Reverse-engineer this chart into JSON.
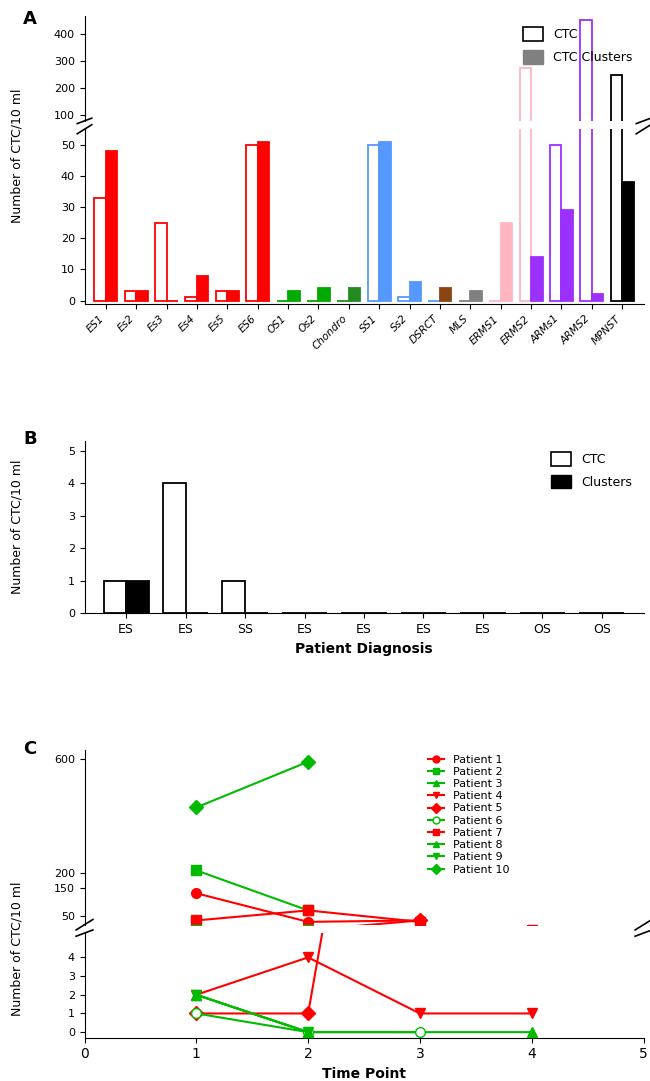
{
  "panel_A": {
    "categories": [
      "ES1",
      "Es2",
      "Es3",
      "Es4",
      "Es5",
      "ES6",
      "OS1",
      "Os2",
      "Chondro",
      "SS1",
      "Ss2",
      "DSRCT",
      "MLS",
      "ERMS1",
      "ERMS2",
      "ARMs1",
      "ARMS2",
      "MPNST"
    ],
    "ctc": [
      33,
      3,
      25,
      1,
      3,
      50,
      0,
      0,
      0,
      50,
      1,
      0,
      0,
      0,
      275,
      50,
      450,
      250
    ],
    "clusters": [
      48,
      3,
      0,
      8,
      3,
      51,
      3,
      4,
      4,
      51,
      6,
      4,
      3,
      25,
      14,
      29,
      2,
      38
    ],
    "bar_colors_ctc": [
      "#FF0000",
      "#FF0000",
      "#FF0000",
      "#FF0000",
      "#FF0000",
      "#FF0000",
      "#00AA00",
      "#00AA00",
      "#228B22",
      "#5599FF",
      "#5599FF",
      "#5599FF",
      "#808080",
      "#FFB6C1",
      "#FFB6C1",
      "#9B30FF",
      "#9B30FF",
      "#000000"
    ],
    "bar_colors_cl": [
      "#FF0000",
      "#FF0000",
      "#FF0000",
      "#FF0000",
      "#FF0000",
      "#FF0000",
      "#00AA00",
      "#00AA00",
      "#228B22",
      "#5599FF",
      "#5599FF",
      "#8B4513",
      "#808080",
      "#FFB6C1",
      "#9B30FF",
      "#9B30FF",
      "#9B30FF",
      "#000000"
    ],
    "ylabel": "Number of CTC/10 ml",
    "yticks_bot": [
      0,
      10,
      20,
      30,
      40,
      50
    ],
    "yticks_top": [
      100,
      200,
      300,
      400
    ]
  },
  "panel_B": {
    "categories": [
      "ES",
      "ES",
      "SS",
      "ES",
      "ES",
      "ES",
      "ES",
      "OS",
      "OS"
    ],
    "ctc": [
      1,
      4,
      1,
      0,
      0,
      0,
      0,
      0,
      0
    ],
    "clusters": [
      1,
      0,
      0,
      0,
      0,
      0,
      0,
      0,
      0
    ],
    "ylabel": "Number of CTC/10 ml",
    "xlabel": "Patient Diagnosis",
    "yticks": [
      0,
      1,
      2,
      3,
      4,
      5
    ]
  },
  "panel_C": {
    "patients": [
      {
        "label": "Patient 1",
        "color": "#FF0000",
        "marker": "o",
        "open": false,
        "data": [
          [
            1,
            130
          ],
          [
            2,
            30
          ],
          [
            3,
            35
          ]
        ]
      },
      {
        "label": "Patient 2",
        "color": "#00BB00",
        "marker": "s",
        "open": false,
        "data": [
          [
            1,
            210
          ],
          [
            2,
            70
          ]
        ]
      },
      {
        "label": "Patient 3",
        "color": "#00BB00",
        "marker": "^",
        "open": false,
        "data": [
          [
            1,
            2
          ],
          [
            2,
            0
          ],
          [
            4,
            0
          ]
        ]
      },
      {
        "label": "Patient 4",
        "color": "#FF0000",
        "marker": "v",
        "open": false,
        "data": [
          [
            1,
            2
          ],
          [
            2,
            4
          ],
          [
            3,
            1
          ],
          [
            4,
            1
          ]
        ]
      },
      {
        "label": "Patient 5",
        "color": "#FF0000",
        "marker": "D",
        "open": false,
        "data": [
          [
            1,
            1
          ],
          [
            2,
            1
          ],
          [
            3,
            35
          ]
        ]
      },
      {
        "label": "Patient 6",
        "color": "#00BB00",
        "marker": "o",
        "open": true,
        "data": [
          [
            1,
            1
          ],
          [
            2,
            0
          ],
          [
            3,
            0
          ]
        ]
      },
      {
        "label": "Patient 7",
        "color": "#FF0000",
        "marker": "s",
        "open": false,
        "data": [
          [
            1,
            35
          ],
          [
            2,
            70
          ],
          [
            3,
            30
          ]
        ]
      },
      {
        "label": "Patient 8",
        "color": "#00BB00",
        "marker": "^",
        "open": false,
        "data": [
          [
            1,
            2
          ],
          [
            2,
            0
          ]
        ]
      },
      {
        "label": "Patient 9",
        "color": "#00BB00",
        "marker": "v",
        "open": false,
        "data": [
          [
            1,
            2
          ],
          [
            2,
            0
          ]
        ]
      },
      {
        "label": "Patient 10",
        "color": "#00BB00",
        "marker": "D",
        "open": false,
        "data": [
          [
            1,
            430
          ],
          [
            2,
            590
          ]
        ]
      }
    ],
    "ylabel": "Number of CTC/10 ml",
    "xlabel": "Time Point",
    "yticks_bot": [
      0,
      1,
      2,
      3,
      4
    ],
    "yticks_top": [
      200,
      600
    ],
    "xlim": [
      0,
      5
    ],
    "xticks": [
      0,
      1,
      2,
      3,
      4,
      5
    ]
  }
}
